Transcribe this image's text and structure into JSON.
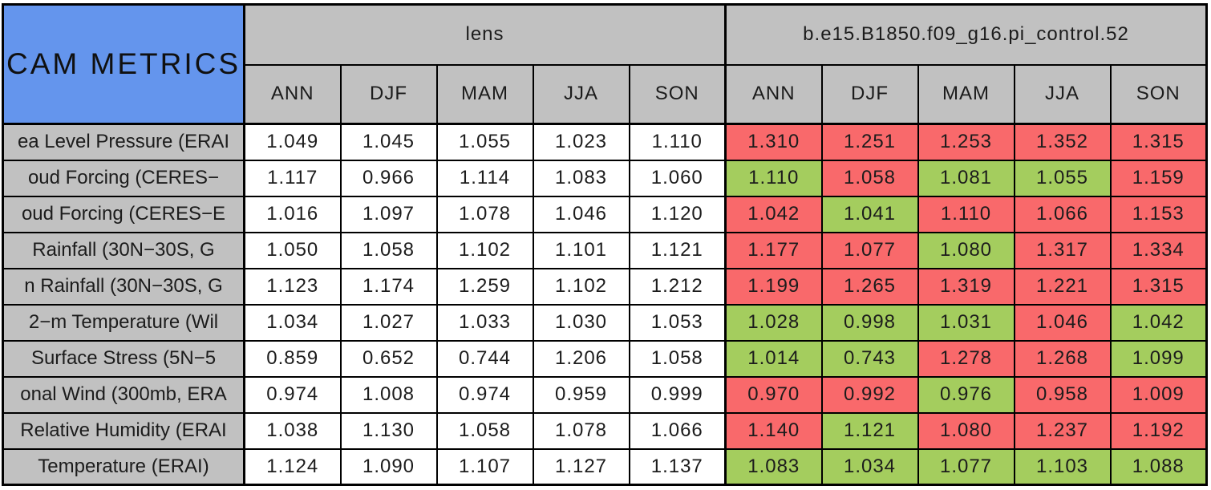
{
  "chart_data": {
    "type": "table",
    "title": "CAM METRICS",
    "groups": [
      {
        "label": "lens"
      },
      {
        "label": "b.e15.B1850.f09_g16.pi_control.52"
      }
    ],
    "seasons": [
      "ANN",
      "DJF",
      "MAM",
      "JJA",
      "SON"
    ],
    "colors": {
      "title_bg": "#6495ed",
      "header_bg": "#c1c1c1",
      "label_bg": "#c1c1c1",
      "lens_cell_bg": "#ffffff",
      "control_red": "#f9696b",
      "control_green": "#a4cd5e",
      "border": "#000000"
    },
    "rows": [
      {
        "label": "ea Level Pressure (ERAI",
        "lens": [
          "1.049",
          "1.045",
          "1.055",
          "1.023",
          "1.110"
        ],
        "control": [
          "1.310",
          "1.251",
          "1.253",
          "1.352",
          "1.315"
        ],
        "control_status": [
          "red",
          "red",
          "red",
          "red",
          "red"
        ]
      },
      {
        "label": "oud Forcing (CERES−",
        "lens": [
          "1.117",
          "0.966",
          "1.114",
          "1.083",
          "1.060"
        ],
        "control": [
          "1.110",
          "1.058",
          "1.081",
          "1.055",
          "1.159"
        ],
        "control_status": [
          "green",
          "red",
          "green",
          "green",
          "red"
        ]
      },
      {
        "label": "oud Forcing (CERES−E",
        "lens": [
          "1.016",
          "1.097",
          "1.078",
          "1.046",
          "1.120"
        ],
        "control": [
          "1.042",
          "1.041",
          "1.110",
          "1.066",
          "1.153"
        ],
        "control_status": [
          "red",
          "green",
          "red",
          "red",
          "red"
        ]
      },
      {
        "label": "Rainfall (30N−30S, G",
        "lens": [
          "1.050",
          "1.058",
          "1.102",
          "1.101",
          "1.121"
        ],
        "control": [
          "1.177",
          "1.077",
          "1.080",
          "1.317",
          "1.334"
        ],
        "control_status": [
          "red",
          "red",
          "green",
          "red",
          "red"
        ]
      },
      {
        "label": "n Rainfall (30N−30S, G",
        "lens": [
          "1.123",
          "1.174",
          "1.259",
          "1.102",
          "1.212"
        ],
        "control": [
          "1.199",
          "1.265",
          "1.319",
          "1.221",
          "1.315"
        ],
        "control_status": [
          "red",
          "red",
          "red",
          "red",
          "red"
        ]
      },
      {
        "label": "2−m Temperature (Wil",
        "lens": [
          "1.034",
          "1.027",
          "1.033",
          "1.030",
          "1.053"
        ],
        "control": [
          "1.028",
          "0.998",
          "1.031",
          "1.046",
          "1.042"
        ],
        "control_status": [
          "green",
          "green",
          "green",
          "red",
          "green"
        ]
      },
      {
        "label": "Surface Stress (5N−5",
        "lens": [
          "0.859",
          "0.652",
          "0.744",
          "1.206",
          "1.058"
        ],
        "control": [
          "1.014",
          "0.743",
          "1.278",
          "1.268",
          "1.099"
        ],
        "control_status": [
          "green",
          "green",
          "red",
          "red",
          "green"
        ]
      },
      {
        "label": "onal Wind (300mb, ERA",
        "lens": [
          "0.974",
          "1.008",
          "0.974",
          "0.959",
          "0.999"
        ],
        "control": [
          "0.970",
          "0.992",
          "0.976",
          "0.958",
          "1.009"
        ],
        "control_status": [
          "red",
          "red",
          "green",
          "red",
          "red"
        ]
      },
      {
        "label": "Relative Humidity (ERAI",
        "lens": [
          "1.038",
          "1.130",
          "1.058",
          "1.078",
          "1.066"
        ],
        "control": [
          "1.140",
          "1.121",
          "1.080",
          "1.237",
          "1.192"
        ],
        "control_status": [
          "red",
          "green",
          "red",
          "red",
          "red"
        ]
      },
      {
        "label": "Temperature (ERAI)",
        "lens": [
          "1.124",
          "1.090",
          "1.107",
          "1.127",
          "1.137"
        ],
        "control": [
          "1.083",
          "1.034",
          "1.077",
          "1.103",
          "1.088"
        ],
        "control_status": [
          "green",
          "green",
          "green",
          "green",
          "green"
        ]
      }
    ]
  }
}
